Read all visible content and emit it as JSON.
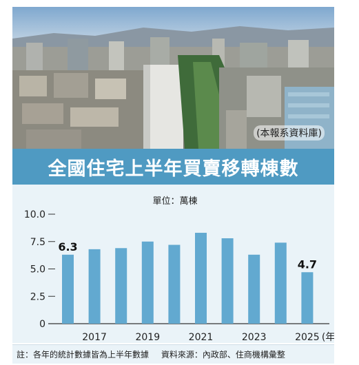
{
  "photo": {
    "credit": "(本報系資料庫)"
  },
  "chart_data": {
    "type": "bar",
    "title": "全國住宅上半年買賣移轉棟數",
    "unit_label": "單位：萬棟",
    "x_unit": "(年)",
    "categories": [
      "2016",
      "2017",
      "2018",
      "2019",
      "2020",
      "2021",
      "2022",
      "2023",
      "2024",
      "2025"
    ],
    "x_tick_labels": [
      "2017",
      "2019",
      "2021",
      "2023",
      "2025"
    ],
    "values": [
      6.3,
      6.8,
      6.9,
      7.5,
      7.2,
      8.3,
      7.8,
      6.3,
      7.4,
      4.7
    ],
    "data_labels": [
      {
        "category": "2016",
        "text": "6.3"
      },
      {
        "category": "2025",
        "text": "4.7"
      }
    ],
    "ylim": [
      0,
      10
    ],
    "y_ticks": [
      0,
      2.5,
      5,
      7.5,
      10
    ],
    "y_tick_labels": [
      "0",
      "2.5",
      "5.0",
      "7.5",
      "10.0"
    ],
    "bar_color": "#62a9d0"
  },
  "footer": {
    "note": "註：各年的統計數據皆為上半年數據",
    "source": "資料來源：內政部、住商機構彙整"
  }
}
